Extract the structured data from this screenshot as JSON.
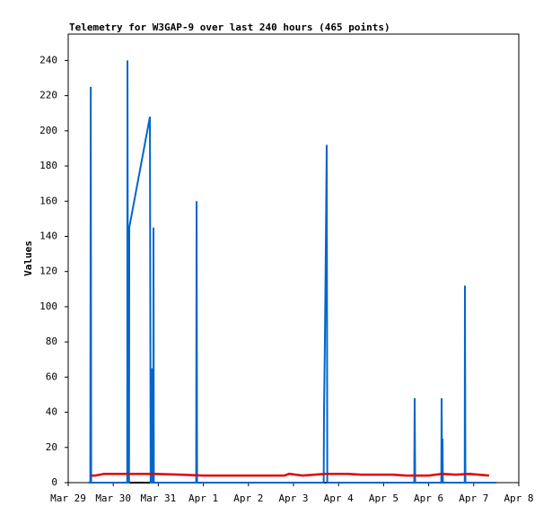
{
  "chart_data": {
    "type": "line",
    "title": "Telemetry for W3GAP-9 over last 240 hours (465 points)",
    "y_label": "Values",
    "xlim": [
      0,
      10
    ],
    "ylim": [
      0,
      255
    ],
    "xticks": [
      {
        "value": 0,
        "label": "Mar 29"
      },
      {
        "value": 1,
        "label": "Mar 30"
      },
      {
        "value": 2,
        "label": "Mar 31"
      },
      {
        "value": 3,
        "label": "Apr 1"
      },
      {
        "value": 4,
        "label": "Apr 2"
      },
      {
        "value": 5,
        "label": "Apr 3"
      },
      {
        "value": 6,
        "label": "Apr 4"
      },
      {
        "value": 7,
        "label": "Apr 5"
      },
      {
        "value": 8,
        "label": "Apr 6"
      },
      {
        "value": 9,
        "label": "Apr 7"
      },
      {
        "value": 10,
        "label": "Apr 8"
      }
    ],
    "yticks": [
      0,
      20,
      40,
      60,
      80,
      100,
      120,
      140,
      160,
      180,
      200,
      220,
      240
    ],
    "grid": false,
    "series": [
      {
        "color": "#000000",
        "x": [
          0.45,
          9.5
        ],
        "values": [
          0,
          0
        ]
      },
      {
        "color": "#0066cc",
        "x": [
          0.45,
          0.49,
          0.5,
          0.51,
          1.31,
          1.315,
          1.33,
          1.35,
          1.355,
          1.813,
          1.83,
          1.85,
          1.853,
          1.86,
          1.89,
          1.892,
          1.9,
          2.84,
          2.849,
          2.86,
          5.67,
          5.677,
          5.697,
          5.717,
          5.737,
          5.75,
          7.68,
          7.689,
          7.7,
          8.28,
          8.287,
          8.297,
          8.307,
          8.315,
          8.8,
          8.805,
          8.815,
          9.5
        ],
        "values": [
          0,
          0,
          225,
          0,
          0,
          240,
          0,
          0,
          145,
          208,
          0,
          0,
          65,
          0,
          0,
          145,
          0,
          0,
          160,
          0,
          0,
          40,
          80,
          133,
          192,
          0,
          0,
          48,
          0,
          0,
          48,
          0,
          25,
          0,
          0,
          112,
          0,
          0
        ]
      },
      {
        "color": "#e00000",
        "x": [
          0.51,
          0.6,
          0.8,
          1.9,
          2.5,
          3.0,
          4.8,
          4.9,
          5.2,
          5.7,
          6.2,
          6.5,
          7.2,
          7.5,
          8.0,
          8.3,
          8.6,
          8.9,
          9.34
        ],
        "values": [
          4,
          4,
          5,
          5,
          4.5,
          4,
          4,
          5,
          4,
          5,
          5,
          4.5,
          4.5,
          4,
          4,
          5,
          4.5,
          5,
          4
        ]
      }
    ]
  }
}
